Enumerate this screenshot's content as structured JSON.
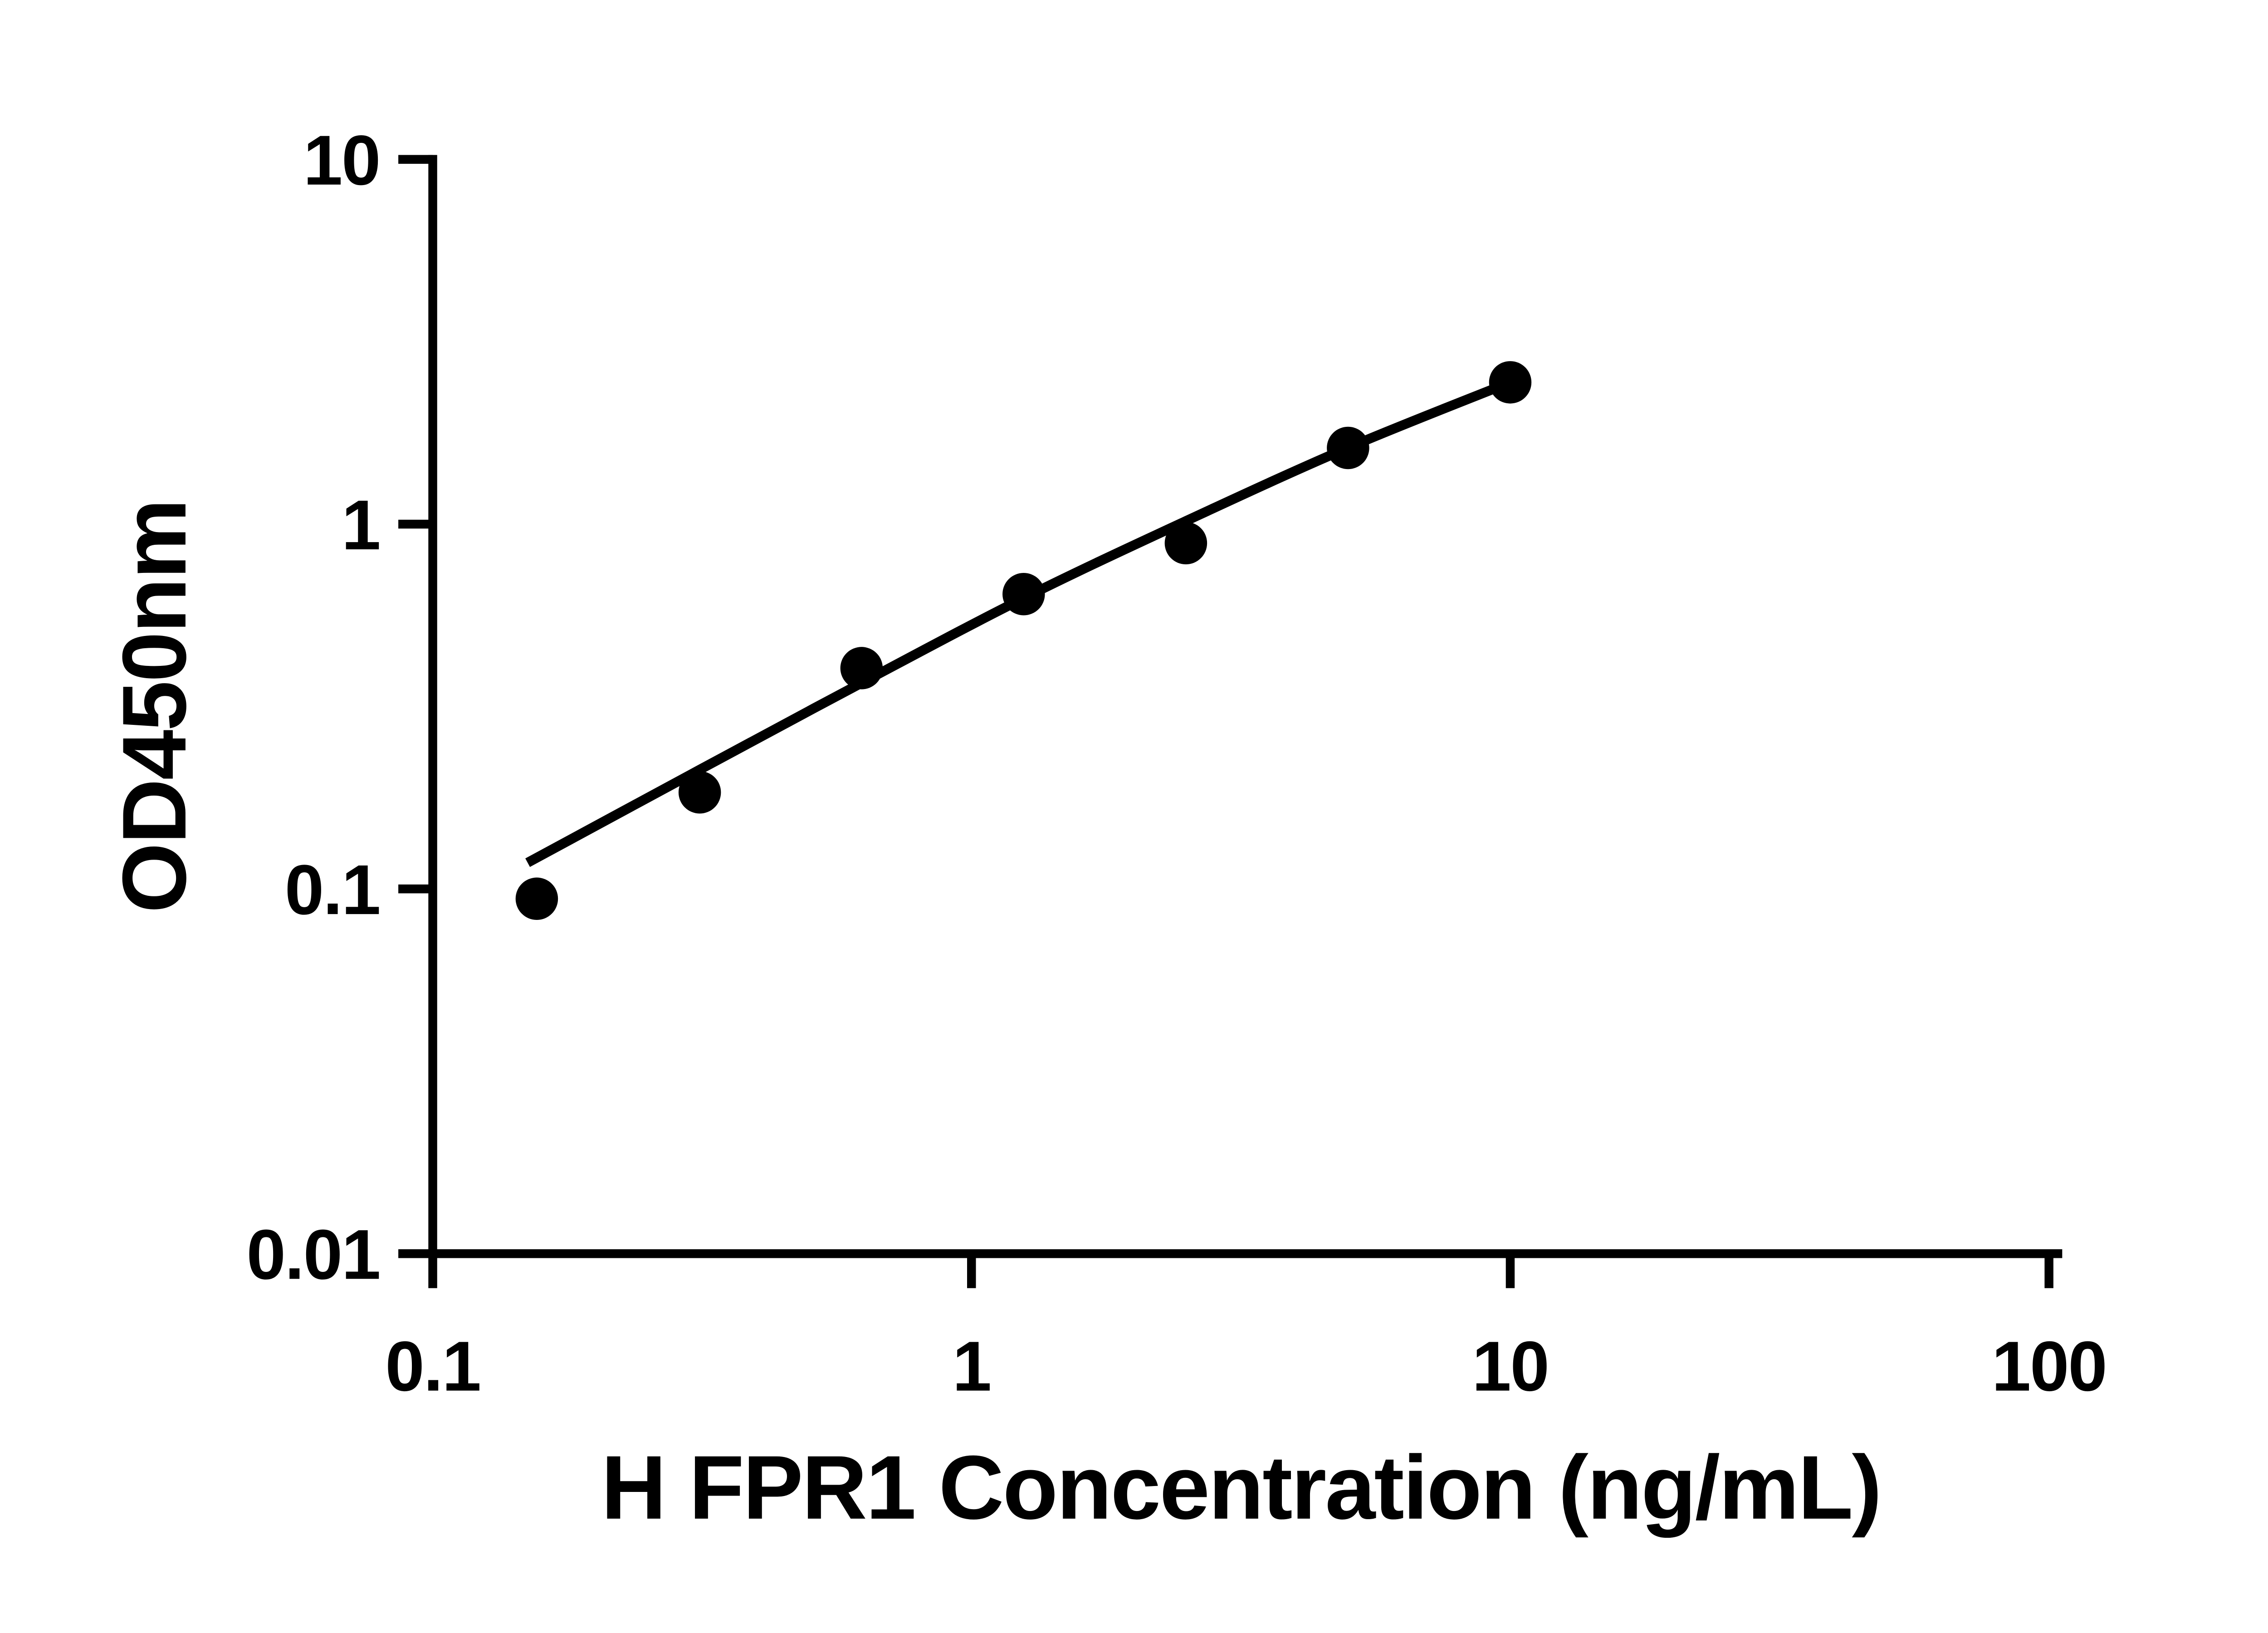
{
  "chart_data": {
    "type": "scatter",
    "title": "",
    "xlabel": "H FPR1 Concentration (ng/mL)",
    "ylabel": "OD450nm",
    "x_scale": "log10",
    "y_scale": "log10",
    "xlim": [
      0.1,
      100
    ],
    "ylim": [
      0.01,
      10
    ],
    "x_ticks": [
      0.1,
      1,
      10,
      100
    ],
    "x_tick_labels": [
      "0.1",
      "1",
      "10",
      "100"
    ],
    "y_ticks": [
      10,
      1,
      0.1,
      0.01
    ],
    "y_tick_labels": [
      "10",
      "1",
      "0.1",
      "0.01"
    ],
    "grid": false,
    "legend_position": "none",
    "series": [
      {
        "name": "standard-data-points",
        "type": "scatter",
        "marker": "filled-circle",
        "x": [
          0.156,
          0.313,
          0.625,
          1.25,
          2.5,
          5,
          10
        ],
        "y": [
          0.094,
          0.184,
          0.403,
          0.643,
          0.887,
          1.618,
          2.448
        ]
      },
      {
        "name": "fitted-standard-curve",
        "type": "line",
        "x": [
          0.15,
          0.3125,
          0.625,
          1.25,
          2.5,
          5,
          10
        ],
        "y": [
          0.118,
          0.212,
          0.367,
          0.627,
          1.02,
          1.62,
          2.448
        ]
      }
    ],
    "colors": {
      "points": "#000000",
      "curve": "#000000",
      "axis": "#000000",
      "background": "#ffffff"
    }
  }
}
